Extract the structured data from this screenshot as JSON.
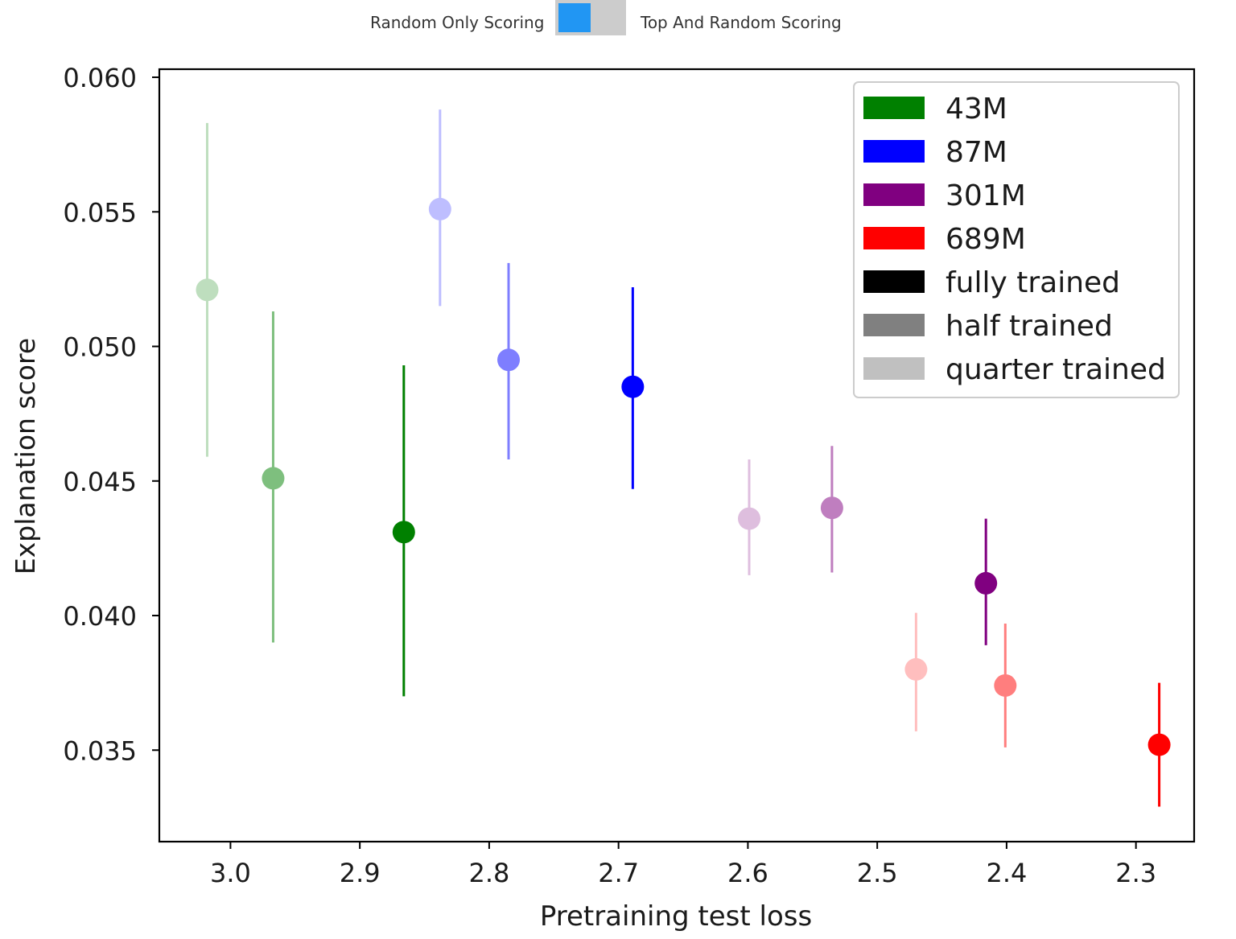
{
  "toggle": {
    "left_label": "Random Only Scoring",
    "right_label": "Top And Random Scoring",
    "knob_color": "#2196f3",
    "track_color": "#cccccc"
  },
  "chart_data": {
    "type": "scatter",
    "title": "",
    "xlabel": "Pretraining test loss",
    "ylabel": "Explanation score",
    "xlim": [
      3.055,
      2.255
    ],
    "ylim": [
      0.0316,
      0.0603
    ],
    "x_inverted": true,
    "grid": false,
    "xticks": [
      3.0,
      2.9,
      2.8,
      2.7,
      2.6,
      2.5,
      2.4,
      2.3
    ],
    "xtick_labels": [
      "3.0",
      "2.9",
      "2.8",
      "2.7",
      "2.6",
      "2.5",
      "2.4",
      "2.3"
    ],
    "yticks": [
      0.035,
      0.04,
      0.045,
      0.05,
      0.055,
      0.06
    ],
    "ytick_labels": [
      "0.035",
      "0.040",
      "0.045",
      "0.050",
      "0.055",
      "0.060"
    ],
    "legend_position": "top-right",
    "legend": [
      {
        "label": "43M",
        "color": "#008000"
      },
      {
        "label": "87M",
        "color": "#0000ff"
      },
      {
        "label": "301M",
        "color": "#800080"
      },
      {
        "label": "689M",
        "color": "#ff0000"
      },
      {
        "label": "fully trained",
        "color": "#000000"
      },
      {
        "label": "half trained",
        "color": "#808080"
      },
      {
        "label": "quarter trained",
        "color": "#c0c0c0"
      }
    ],
    "series": [
      {
        "name": "43M",
        "color": "#008000",
        "points": [
          {
            "training": "quarter trained",
            "alpha": 0.25,
            "x": 3.018,
            "y": 0.0521,
            "err_low": 0.0459,
            "err_high": 0.0583
          },
          {
            "training": "half trained",
            "alpha": 0.5,
            "x": 2.967,
            "y": 0.0451,
            "err_low": 0.039,
            "err_high": 0.0513
          },
          {
            "training": "fully trained",
            "alpha": 1.0,
            "x": 2.866,
            "y": 0.0431,
            "err_low": 0.037,
            "err_high": 0.0493
          }
        ]
      },
      {
        "name": "87M",
        "color": "#0000ff",
        "points": [
          {
            "training": "quarter trained",
            "alpha": 0.25,
            "x": 2.838,
            "y": 0.0551,
            "err_low": 0.0515,
            "err_high": 0.0588
          },
          {
            "training": "half trained",
            "alpha": 0.5,
            "x": 2.785,
            "y": 0.0495,
            "err_low": 0.0458,
            "err_high": 0.0531
          },
          {
            "training": "fully trained",
            "alpha": 1.0,
            "x": 2.689,
            "y": 0.0485,
            "err_low": 0.0447,
            "err_high": 0.0522
          }
        ]
      },
      {
        "name": "301M",
        "color": "#800080",
        "points": [
          {
            "training": "quarter trained",
            "alpha": 0.25,
            "x": 2.599,
            "y": 0.0436,
            "err_low": 0.0415,
            "err_high": 0.0458
          },
          {
            "training": "half trained",
            "alpha": 0.5,
            "x": 2.535,
            "y": 0.044,
            "err_low": 0.0416,
            "err_high": 0.0463
          },
          {
            "training": "fully trained",
            "alpha": 1.0,
            "x": 2.416,
            "y": 0.0412,
            "err_low": 0.0389,
            "err_high": 0.0436
          }
        ]
      },
      {
        "name": "689M",
        "color": "#ff0000",
        "points": [
          {
            "training": "quarter trained",
            "alpha": 0.25,
            "x": 2.47,
            "y": 0.038,
            "err_low": 0.0357,
            "err_high": 0.0401
          },
          {
            "training": "half trained",
            "alpha": 0.5,
            "x": 2.401,
            "y": 0.0374,
            "err_low": 0.0351,
            "err_high": 0.0397
          },
          {
            "training": "fully trained",
            "alpha": 1.0,
            "x": 2.282,
            "y": 0.0352,
            "err_low": 0.0329,
            "err_high": 0.0375
          }
        ]
      }
    ]
  }
}
